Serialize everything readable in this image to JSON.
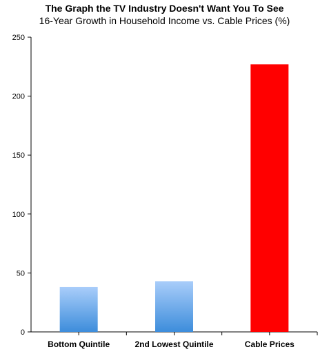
{
  "chart_data": {
    "type": "bar",
    "title": "The Graph the TV Industry Doesn't Want You To See",
    "subtitle": "16-Year Growth in Household Income vs. Cable Prices (%)",
    "categories": [
      "Bottom Quintile",
      "2nd Lowest Quintile",
      "Cable Prices"
    ],
    "values": [
      38,
      43,
      227
    ],
    "bar_styles": [
      "blue-gradient",
      "blue-gradient",
      "red"
    ],
    "colors": {
      "blue_top": "#a9cdfa",
      "blue_bottom": "#3d8ddb",
      "red": "#ff0000",
      "axis": "#000000"
    },
    "ylim": [
      0,
      250
    ],
    "yticks": [
      0,
      50,
      100,
      150,
      200,
      250
    ],
    "grid": false,
    "legend": "none"
  }
}
